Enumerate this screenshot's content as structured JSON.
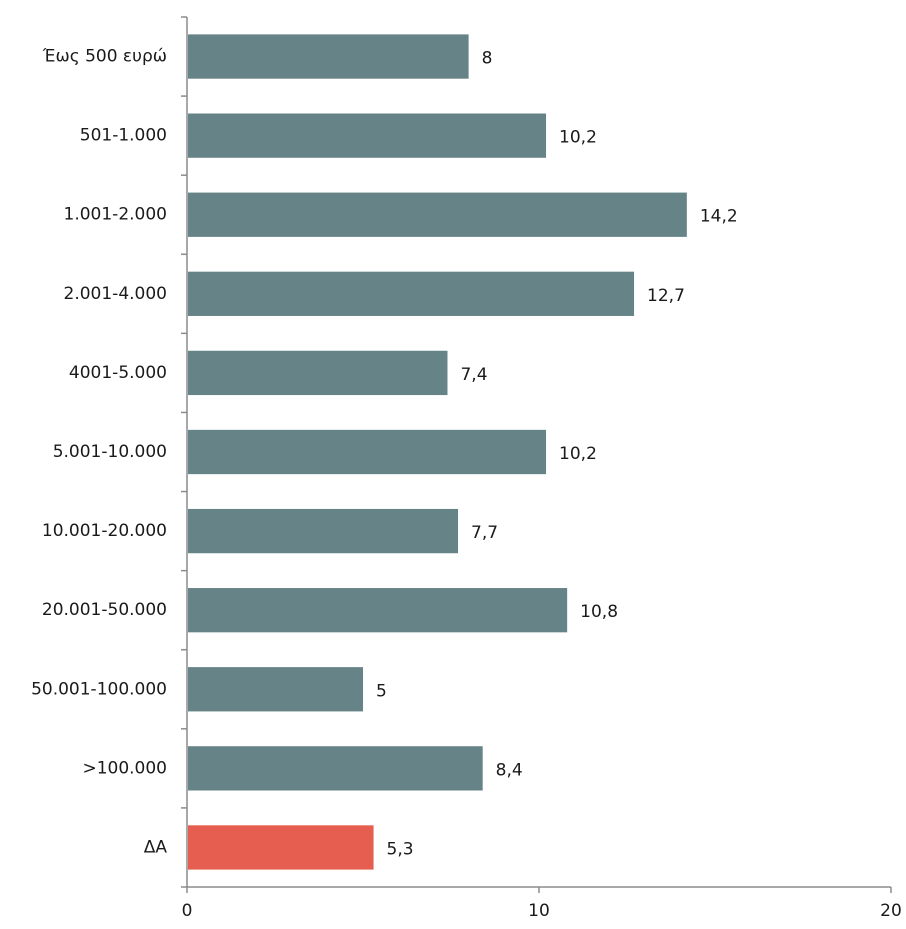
{
  "chart_data": {
    "type": "bar",
    "orientation": "horizontal",
    "categories": [
      "Έως 500 ευρώ",
      "501-1.000",
      "1.001-2.000",
      "2.001-4.000",
      "4001-5.000",
      "5.001-10.000",
      "10.001-20.000",
      "20.001-50.000",
      "50.001-100.000",
      ">100.000",
      "ΔΑ"
    ],
    "values": [
      8,
      10.2,
      14.2,
      12.7,
      7.4,
      10.2,
      7.7,
      10.8,
      5,
      8.4,
      5.3
    ],
    "value_labels": [
      "8",
      "10,2",
      "14,2",
      "12,7",
      "7,4",
      "10,2",
      "7,7",
      "10,8",
      "5",
      "8,4",
      "5,3"
    ],
    "bar_colors": [
      "#668387",
      "#668387",
      "#668387",
      "#668387",
      "#668387",
      "#668387",
      "#668387",
      "#668387",
      "#668387",
      "#668387",
      "#e55e4f"
    ],
    "xlim": [
      0,
      20
    ],
    "xticks": [
      0,
      10,
      20
    ],
    "xtick_labels": [
      "0",
      "10",
      "20"
    ],
    "title": "",
    "xlabel": "",
    "ylabel": "",
    "grid": false,
    "legend": "none"
  }
}
